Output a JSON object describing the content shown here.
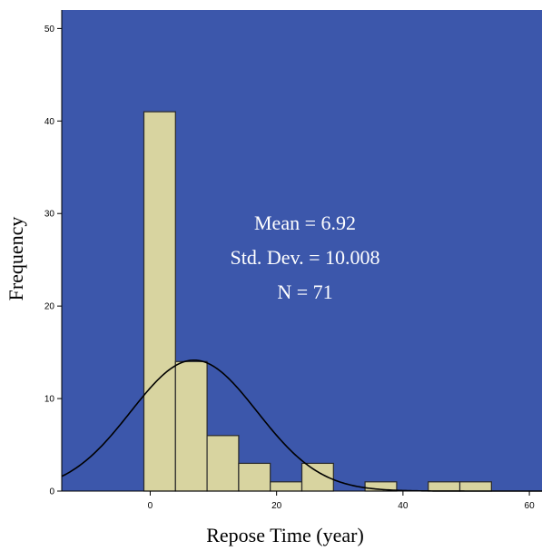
{
  "chart_data": {
    "type": "bar",
    "subtype": "histogram",
    "xlabel": "Repose Time (year)",
    "ylabel": "Frequency",
    "xlim": [
      -14,
      62
    ],
    "ylim": [
      0,
      52
    ],
    "xticks": [
      0,
      20,
      40,
      60
    ],
    "yticks": [
      0,
      10,
      20,
      30,
      40,
      50
    ],
    "bins": [
      {
        "start": -1,
        "end": 4,
        "count": 41
      },
      {
        "start": 4,
        "end": 9,
        "count": 14
      },
      {
        "start": 9,
        "end": 14,
        "count": 6
      },
      {
        "start": 14,
        "end": 19,
        "count": 3
      },
      {
        "start": 19,
        "end": 24,
        "count": 1
      },
      {
        "start": 24,
        "end": 29,
        "count": 3
      },
      {
        "start": 29,
        "end": 34,
        "count": 0
      },
      {
        "start": 34,
        "end": 39,
        "count": 1
      },
      {
        "start": 39,
        "end": 44,
        "count": 0
      },
      {
        "start": 44,
        "end": 49,
        "count": 1
      },
      {
        "start": 49,
        "end": 54,
        "count": 1
      }
    ],
    "normal_curve": {
      "mean": 6.92,
      "sd": 10.008,
      "n": 71
    },
    "stats": {
      "mean_label": "Mean = 6.92",
      "sd_label": "Std. Dev. = 10.008",
      "n_label": "N = 71"
    },
    "grid": false,
    "legend": "none"
  },
  "colors": {
    "plot_background": "#3c57ab",
    "bar_fill": "#d8d4a0",
    "bar_stroke": "#2a2a2a",
    "curve": "#000000",
    "stat_text": "#ffffff"
  }
}
